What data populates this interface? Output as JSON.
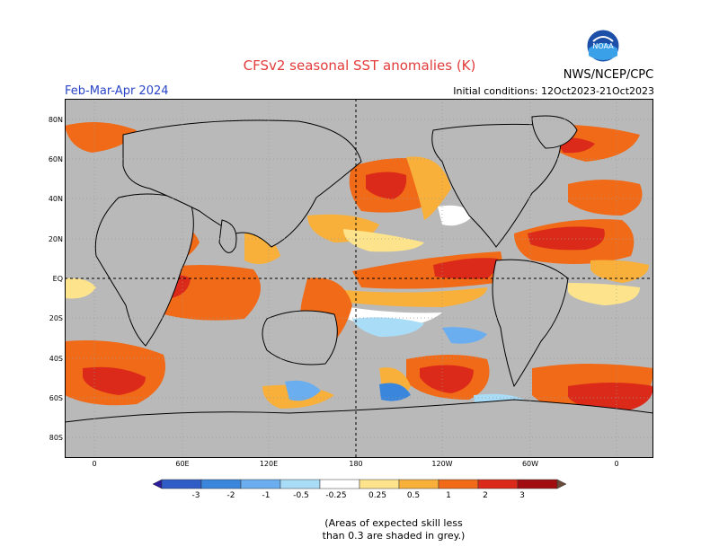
{
  "title": "CFSv2 seasonal SST anomalies (K)",
  "season": "Feb-Mar-Apr 2024",
  "initial_conditions": "Initial conditions: 12Oct2023-21Oct2023",
  "organization": "NWS/NCEP/CPC",
  "logo_text": "NOAA",
  "lat_labels": [
    "80N",
    "60N",
    "40N",
    "20N",
    "EQ",
    "20S",
    "40S",
    "60S",
    "80S"
  ],
  "lon_labels": [
    "0",
    "60E",
    "120E",
    "180",
    "120W",
    "60W",
    "0"
  ],
  "colorbar": {
    "labels": [
      "-3",
      "-2",
      "-1",
      "-0.5",
      "-0.25",
      "0.25",
      "0.5",
      "1",
      "2",
      "3"
    ],
    "colors": [
      "#2a1c9c",
      "#2f5cc7",
      "#3b86dd",
      "#6aaef0",
      "#a9dcf7",
      "#ffffff",
      "#fde48c",
      "#f8b03a",
      "#f06a17",
      "#db2a1a",
      "#a10c10",
      "#6b4a3a"
    ]
  },
  "colors": {
    "ocean_grey": "#b9b9b9",
    "title_red": "#e23b3b",
    "season_blue": "#2a45c8"
  },
  "note_line1": "(Areas of expected skill less",
  "note_line2": "than 0.3 are shaded in grey.)"
}
